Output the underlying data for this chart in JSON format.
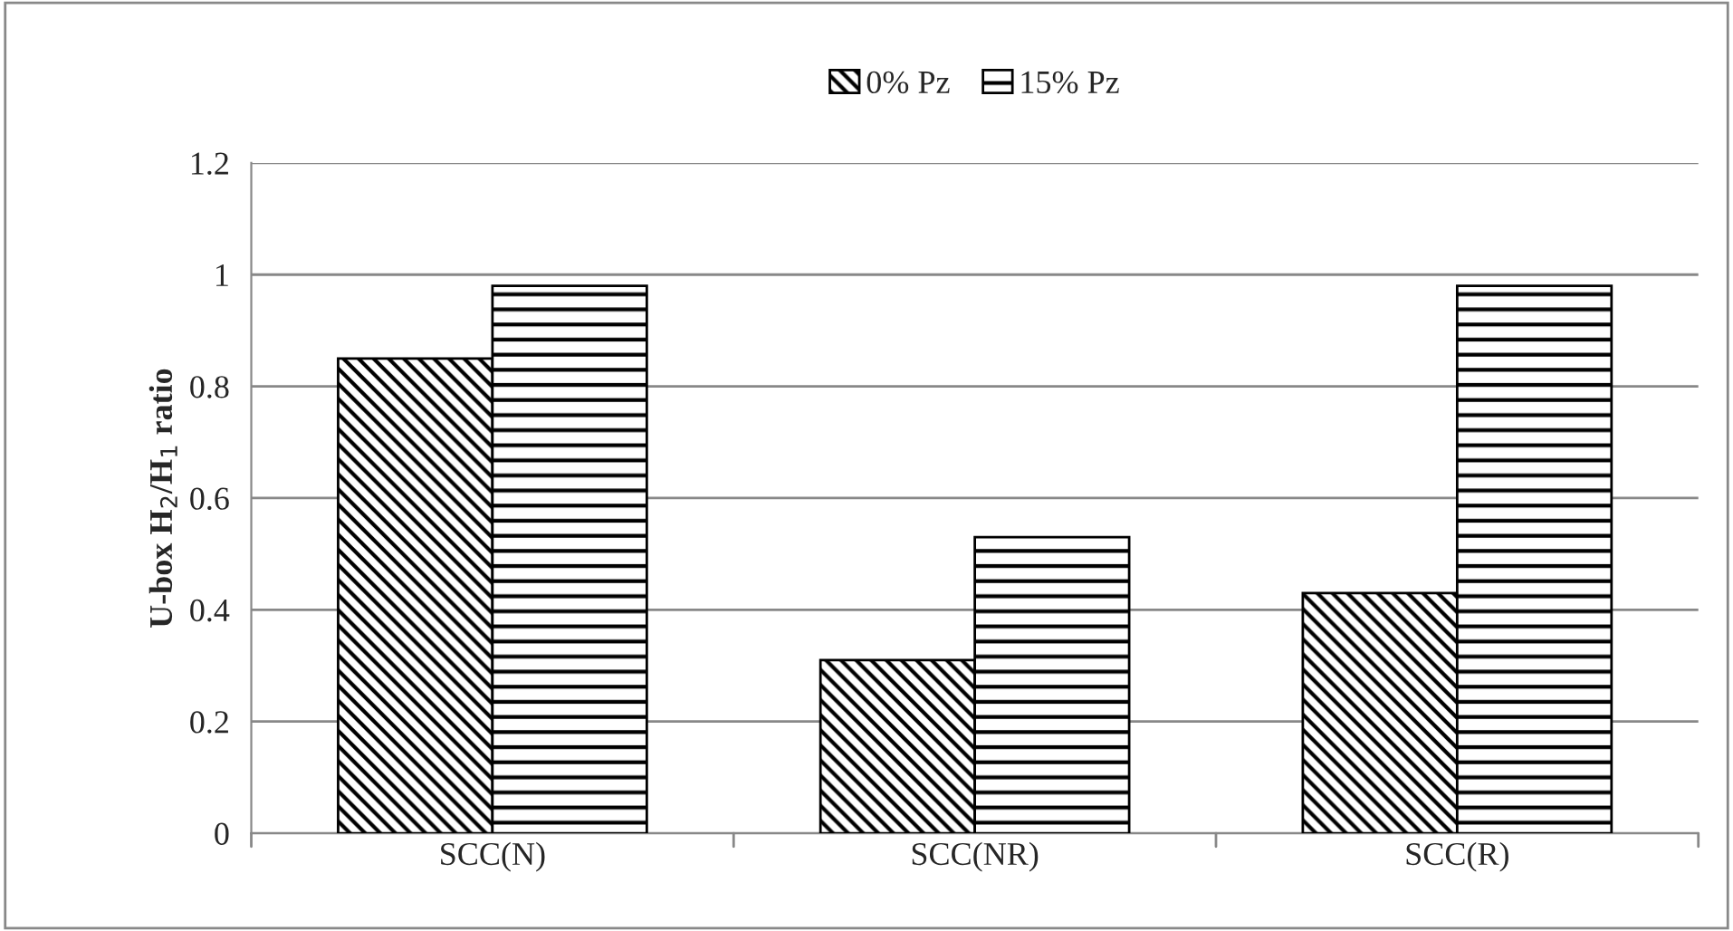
{
  "chart_data": {
    "type": "bar",
    "ylabel": "U-box H$_{2}$/H$_{1}$ ratio",
    "categories": [
      "SCC(N)",
      "SCC(NR)",
      "SCC(R)"
    ],
    "series": [
      {
        "name": "0% Pz",
        "color": "#000000",
        "values": [
          0.85,
          0.31,
          0.43
        ]
      },
      {
        "name": "15% Pz",
        "color": "#000000",
        "values": [
          0.98,
          0.53,
          0.98
        ]
      }
    ],
    "ylim": [
      0,
      1.2
    ],
    "yticks": [
      0,
      0.2,
      0.4,
      0.6,
      0.8,
      1,
      1.2
    ],
    "grid": "y",
    "legend": "top"
  }
}
